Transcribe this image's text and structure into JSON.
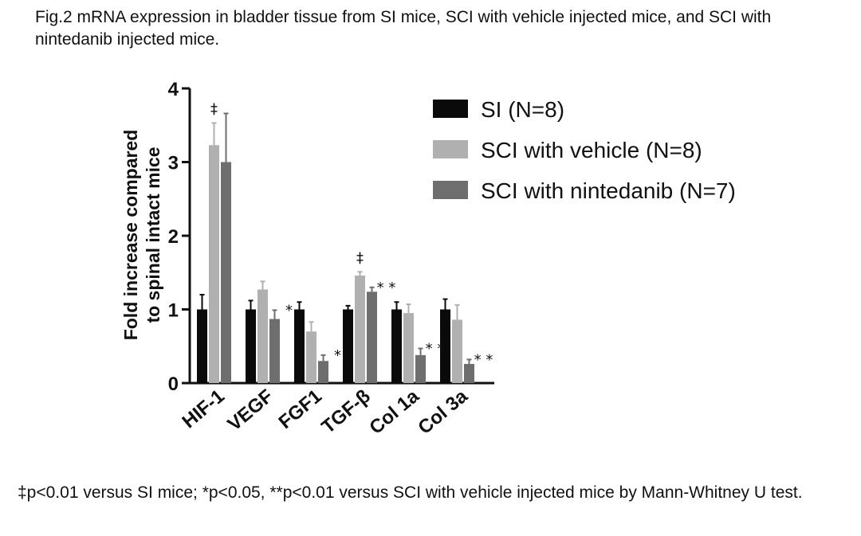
{
  "caption": "Fig.2 mRNA expression in bladder tissue from SI mice, SCI with vehicle injected mice, and SCI with nintedanib injected mice.",
  "footnote": "‡p<0.01 versus SI mice; *p<0.05, **p<0.01 versus SCI with vehicle injected mice by Mann-Whitney U test.",
  "colors": {
    "si": "#0a0a0a",
    "vehicle": "#b0b0b0",
    "nintedanib": "#6e6e6e"
  },
  "chart_data": {
    "type": "bar",
    "ylabel_line1": "Fold increase compared",
    "ylabel_line2": "to spinal intact mice",
    "ylim": [
      0,
      4
    ],
    "yticks": [
      "0",
      "1",
      "2",
      "3",
      "4"
    ],
    "categories": [
      "HIF-1",
      "VEGF",
      "FGF1",
      "TGF-β",
      "Col 1a",
      "Col 3a"
    ],
    "series": [
      {
        "name": "SI (N=8)",
        "values": [
          1.0,
          1.0,
          1.0,
          1.0,
          1.0,
          1.0
        ],
        "errors": [
          0.2,
          0.12,
          0.1,
          0.05,
          0.1,
          0.14
        ]
      },
      {
        "name": "SCI with vehicle (N=8)",
        "values": [
          3.23,
          1.27,
          0.7,
          1.46,
          0.95,
          0.86
        ],
        "errors": [
          0.3,
          0.11,
          0.13,
          0.05,
          0.12,
          0.2
        ]
      },
      {
        "name": "SCI with nintedanib (N=7)",
        "values": [
          3.0,
          0.87,
          0.3,
          1.24,
          0.38,
          0.26
        ],
        "errors": [
          0.66,
          0.12,
          0.08,
          0.06,
          0.09,
          0.06
        ]
      }
    ],
    "annotations": [
      {
        "category": 0,
        "series": 1,
        "text": "‡"
      },
      {
        "category": 1,
        "series": 2,
        "text": "*"
      },
      {
        "category": 2,
        "series": 2,
        "text": "*"
      },
      {
        "category": 3,
        "series": 1,
        "text": "‡"
      },
      {
        "category": 3,
        "series": 2,
        "text": "* *"
      },
      {
        "category": 4,
        "series": 2,
        "text": "* *"
      },
      {
        "category": 5,
        "series": 2,
        "text": "* *"
      }
    ],
    "legend_position": "right"
  }
}
